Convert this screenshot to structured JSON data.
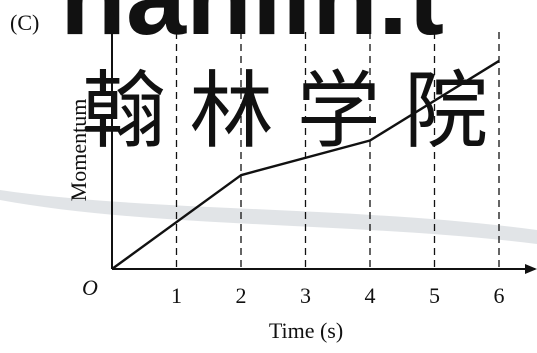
{
  "panel_label": "(C)",
  "watermark": {
    "latin": "hanlin.t",
    "cjk": "翰 林 学 院",
    "color": "#c9ced3"
  },
  "colors": {
    "ink": "#111111",
    "watermark": "#c9ced3"
  },
  "chart_data": {
    "type": "line",
    "origin_label": "O",
    "xlabel": "Time (s)",
    "ylabel": "Momentum",
    "x_ticks": [
      "1",
      "2",
      "3",
      "4",
      "5",
      "6"
    ],
    "xlim": [
      0,
      6.4
    ],
    "ylim": [
      0,
      5.2
    ],
    "grid": "dashed vertical lines at each x tick",
    "series": [
      {
        "x": [
          0,
          2,
          4,
          6
        ],
        "y": [
          0,
          2.3,
          3.15,
          5.1
        ]
      }
    ]
  }
}
